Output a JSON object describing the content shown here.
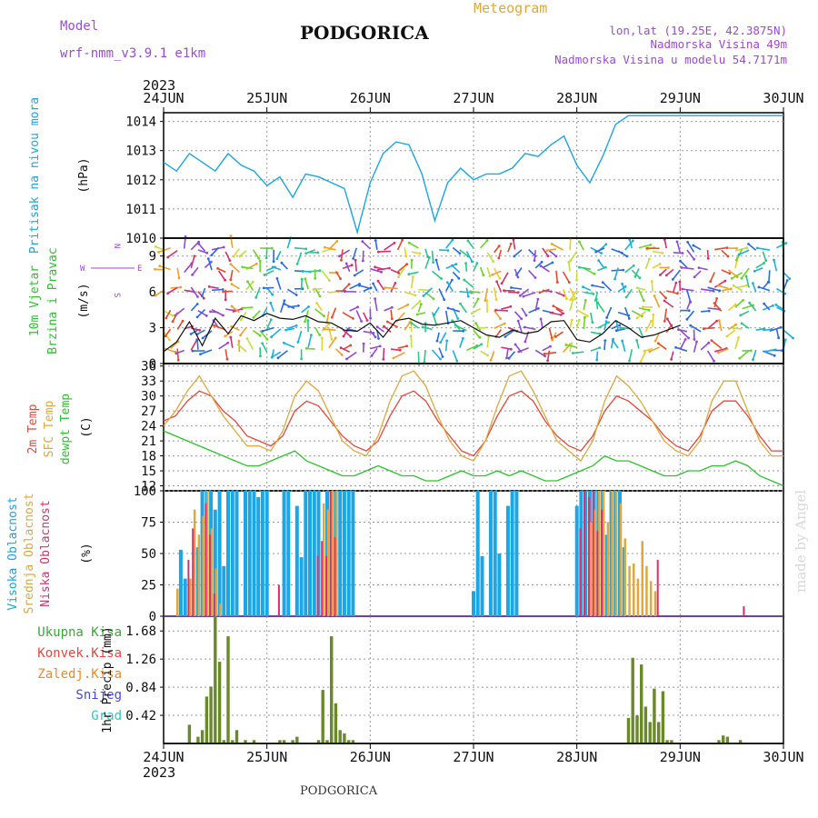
{
  "header": {
    "model_label": "Model",
    "model_name": "wrf-nmm_v3.9.1 e1km",
    "city": "PODGORICA",
    "meteogram": "Meteogram",
    "lonlat": "lon,lat (19.25E, 42.3875N)",
    "elev": "Nadmorska Visina 49m",
    "elev_model": "Nadmorska Visina u modelu 54.7171m",
    "year_top": "2023",
    "year_bottom": "2023",
    "footer_city": "PODGORICA",
    "credit": "made by Angel"
  },
  "colors": {
    "pressure": "#1ba6e6",
    "temp2m": "#e8463c",
    "sfc": "#e0a83c",
    "dewpt": "#2ac52a",
    "high_cloud": "#1ba6e6",
    "mid_cloud": "#e0a83c",
    "low_cloud": "#d8306e",
    "rain_total": "#3aa83a",
    "rain_conv": "#e8463c",
    "purple": "#a048d8"
  },
  "chart_data": [
    {
      "type": "line",
      "title": "",
      "ylabel_side": "Pritisak na nivou mora",
      "ylabel": "(hPa)",
      "x_ticks": [
        "24JUN",
        "25JUN",
        "26JUN",
        "27JUN",
        "28JUN",
        "29JUN",
        "30JUN"
      ],
      "ylim": [
        1010,
        1014.3
      ],
      "yticks": [
        "1010",
        "1011",
        "1012",
        "1013",
        "1014"
      ],
      "series": [
        {
          "name": "",
          "x_hours": [
            0,
            3,
            6,
            9,
            12,
            15,
            18,
            21,
            24,
            27,
            30,
            33,
            36,
            39,
            42,
            45,
            48,
            51,
            54,
            57,
            60,
            63,
            66,
            69,
            72,
            75,
            78,
            81,
            84,
            87,
            90,
            93,
            96,
            99,
            102,
            105,
            108,
            111,
            114,
            117,
            120,
            123,
            126,
            129,
            132,
            135,
            138,
            141,
            144
          ],
          "values": [
            1012.6,
            1012.3,
            1012.9,
            1012.6,
            1012.3,
            1012.9,
            1012.5,
            1012.3,
            1011.8,
            1012.1,
            1011.4,
            1012.2,
            1012.1,
            1011.9,
            1011.7,
            1010.2,
            1011.9,
            1012.9,
            1013.3,
            1013.2,
            1012.2,
            1010.6,
            1011.9,
            1012.4,
            1012.0,
            1012.2,
            1012.2,
            1012.4,
            1012.9,
            1012.8,
            1013.2,
            1013.5,
            1012.5,
            1011.9,
            1012.8,
            1013.9,
            1014.2,
            1014.2,
            1014.2,
            1014.2,
            1014.2,
            1014.2,
            1014.2,
            1014.2,
            1014.2,
            1014.2,
            1014.2,
            1014.2,
            1014.2
          ]
        }
      ]
    },
    {
      "type": "line",
      "title": "",
      "ylabel_side": "10m Vjetar Brzina i Pravac",
      "ylabel": "(m/s)",
      "compass": {
        "n": "N",
        "w": "W",
        "e": "E",
        "s": "S"
      },
      "ylim": [
        0,
        10.5
      ],
      "yticks": [
        "0",
        "3",
        "6",
        "9"
      ],
      "series": [
        {
          "name": "",
          "x_hours": [
            0,
            3,
            6,
            9,
            12,
            15,
            18,
            21,
            24,
            27,
            30,
            33,
            36,
            39,
            42,
            45,
            48,
            51,
            54,
            57,
            60,
            63,
            66,
            69,
            72,
            75,
            78,
            81,
            84,
            87,
            90,
            93,
            96,
            99,
            102,
            105,
            108,
            111,
            114,
            117,
            120
          ],
          "values": [
            1.0,
            1.8,
            3.5,
            1.5,
            3.8,
            2.5,
            4.0,
            3.6,
            4.2,
            3.8,
            3.7,
            4.0,
            3.5,
            3.4,
            2.8,
            2.7,
            3.4,
            2.2,
            3.6,
            3.8,
            3.3,
            3.2,
            3.4,
            3.6,
            3.0,
            2.4,
            2.2,
            2.8,
            2.5,
            2.7,
            3.5,
            3.6,
            2.0,
            1.8,
            2.5,
            3.6,
            3.0,
            2.2,
            2.4,
            2.8,
            3.2
          ]
        }
      ]
    },
    {
      "type": "line",
      "title": "",
      "ylabel_side": [
        "2m Temp",
        "SFC Temp",
        "dewpt Temp"
      ],
      "ylabel": "(C)",
      "ylim": [
        11,
        36.5
      ],
      "yticks": [
        "12",
        "15",
        "18",
        "21",
        "24",
        "27",
        "30",
        "33",
        "36"
      ],
      "series": [
        {
          "name": "2m Temp",
          "values": [
            25,
            26,
            29,
            31,
            30,
            27,
            25,
            22,
            21,
            20,
            22,
            27,
            29,
            28,
            25,
            22,
            20,
            19,
            21,
            26,
            30,
            31,
            29,
            25,
            22,
            19,
            18,
            21,
            26,
            30,
            31,
            29,
            25,
            22,
            20,
            19,
            22,
            27,
            30,
            29,
            27,
            25,
            22,
            20,
            19,
            22,
            27,
            29,
            29,
            26,
            22,
            19,
            19
          ]
        },
        {
          "name": "SFC Temp",
          "values": [
            24,
            27,
            31,
            34,
            30,
            26,
            23,
            20,
            20,
            19,
            23,
            30,
            33,
            31,
            26,
            21,
            19,
            18,
            22,
            29,
            34,
            35,
            32,
            26,
            21,
            18,
            17,
            21,
            28,
            34,
            35,
            31,
            26,
            21,
            19,
            17,
            21,
            29,
            34,
            32,
            29,
            25,
            21,
            19,
            18,
            21,
            29,
            33,
            33,
            27,
            21,
            18,
            18
          ]
        },
        {
          "name": "dewpt Temp",
          "values": [
            23,
            22,
            21,
            20,
            19,
            18,
            17,
            16,
            16,
            17,
            18,
            19,
            17,
            16,
            15,
            14,
            14,
            15,
            16,
            15,
            14,
            14,
            13,
            13,
            14,
            15,
            14,
            14,
            15,
            14,
            15,
            14,
            13,
            13,
            14,
            15,
            16,
            18,
            17,
            17,
            16,
            15,
            14,
            14,
            15,
            15,
            16,
            16,
            17,
            16,
            14,
            13,
            12
          ]
        }
      ]
    },
    {
      "type": "bar",
      "title": "",
      "ylabel_side": [
        "Visoka Oblacnost",
        "Srednja Oblacnost",
        "Niska Oblacnost"
      ],
      "ylabel": "(%)",
      "ylim": [
        0,
        100
      ],
      "yticks": [
        "0",
        "25",
        "50",
        "75",
        "100"
      ],
      "series": [
        {
          "name": "Visoka Oblacnost",
          "x_hours": [
            4,
            5,
            8,
            9,
            10,
            11,
            12,
            13,
            14,
            15,
            16,
            17,
            19,
            20,
            21,
            22,
            23,
            24,
            28,
            29,
            31,
            32,
            33,
            34,
            35,
            36,
            38,
            39,
            40,
            41,
            42,
            43,
            44,
            72,
            73,
            74,
            76,
            77,
            78,
            80,
            81,
            82,
            96,
            97,
            98,
            99,
            100,
            101,
            102,
            103,
            104,
            105,
            106,
            107
          ],
          "values": [
            53,
            30,
            55,
            100,
            100,
            100,
            85,
            100,
            40,
            100,
            100,
            100,
            100,
            100,
            100,
            95,
            100,
            100,
            100,
            100,
            88,
            47,
            100,
            100,
            100,
            100,
            100,
            100,
            100,
            100,
            100,
            100,
            100,
            20,
            100,
            48,
            100,
            100,
            50,
            88,
            100,
            100,
            88,
            100,
            100,
            100,
            100,
            100,
            100,
            65,
            100,
            100,
            100,
            55
          ]
        },
        {
          "name": "Srednja Oblacnost",
          "x_hours": [
            3,
            6,
            7,
            8,
            9,
            10,
            11,
            12,
            13,
            37,
            38,
            39,
            40,
            99,
            100,
            101,
            102,
            103,
            104,
            105,
            106,
            107,
            108,
            109,
            110,
            111,
            112,
            113,
            114
          ],
          "values": [
            22,
            30,
            85,
            65,
            80,
            100,
            70,
            38,
            10,
            90,
            85,
            100,
            100,
            75,
            85,
            100,
            100,
            75,
            100,
            100,
            90,
            62,
            40,
            42,
            30,
            60,
            40,
            28,
            20
          ]
        },
        {
          "name": "Niska Oblacnost",
          "x_hours": [
            6,
            7,
            10,
            11,
            12,
            27,
            36,
            37,
            38,
            39,
            40,
            97,
            98,
            99,
            100,
            101,
            102,
            115,
            135
          ],
          "values": [
            45,
            70,
            90,
            65,
            18,
            25,
            48,
            60,
            48,
            100,
            63,
            70,
            100,
            95,
            100,
            68,
            85,
            45,
            8
          ]
        }
      ]
    },
    {
      "type": "bar",
      "title": "",
      "ylabel_side": [
        "Ukupna Kisa",
        "Konvek.Kisa",
        "Zaledj.Kisa",
        "Snijeg",
        "Grad"
      ],
      "ylabel": "1hr Precip (mm)",
      "ylim": [
        0,
        1.9
      ],
      "yticks": [
        "0.42",
        "0.84",
        "1.26",
        "1.68"
      ],
      "series": [
        {
          "name": "Ukupna Kisa",
          "x_hours": [
            6,
            8,
            9,
            10,
            11,
            12,
            13,
            14,
            15,
            16,
            17,
            19,
            21,
            27,
            28,
            30,
            31,
            36,
            37,
            38,
            39,
            40,
            41,
            42,
            43,
            44,
            108,
            109,
            110,
            111,
            112,
            113,
            114,
            115,
            116,
            117,
            118,
            129,
            130,
            131,
            134
          ],
          "values": [
            0.28,
            0.1,
            0.2,
            0.7,
            0.85,
            1.9,
            1.22,
            0.05,
            1.6,
            0.05,
            0.2,
            0.05,
            0.05,
            0.05,
            0.05,
            0.05,
            0.1,
            0.05,
            0.8,
            0.05,
            1.6,
            0.6,
            0.2,
            0.15,
            0.05,
            0.05,
            0.38,
            1.28,
            0.42,
            1.18,
            0.55,
            0.32,
            0.82,
            0.32,
            0.78,
            0.05,
            0.05,
            0.05,
            0.12,
            0.1,
            0.05
          ]
        }
      ]
    }
  ]
}
